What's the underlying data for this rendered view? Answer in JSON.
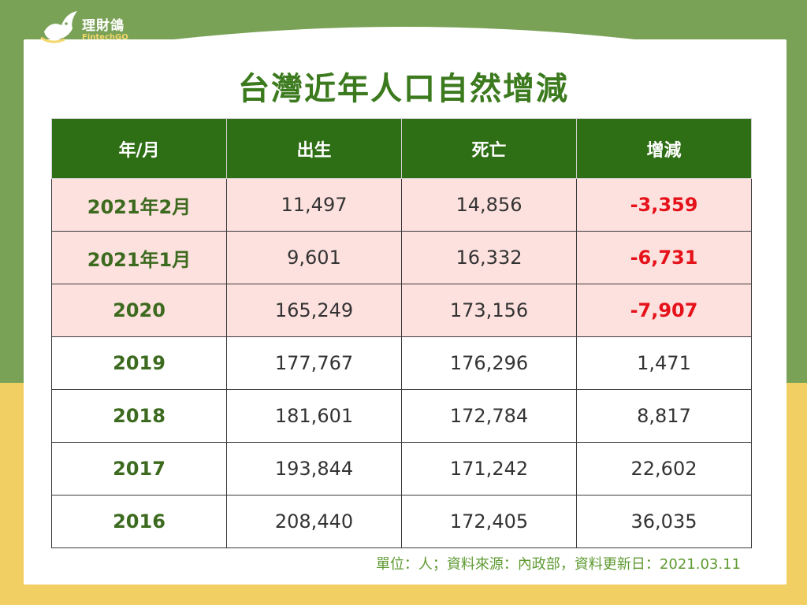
{
  "logo": {
    "name": "理財鴿",
    "subtitle": "FintechGO"
  },
  "title": "台灣近年人口自然增減",
  "table": {
    "headers": [
      "年/月",
      "出生",
      "死亡",
      "增減"
    ],
    "rows": [
      {
        "period": "2021年2月",
        "births": "11,497",
        "deaths": "14,856",
        "change": "-3,359",
        "highlight": true,
        "negative": true
      },
      {
        "period": "2021年1月",
        "births": "9,601",
        "deaths": "16,332",
        "change": "-6,731",
        "highlight": true,
        "negative": true
      },
      {
        "period": "2020",
        "births": "165,249",
        "deaths": "173,156",
        "change": "-7,907",
        "highlight": true,
        "negative": true
      },
      {
        "period": "2019",
        "births": "177,767",
        "deaths": "176,296",
        "change": "1,471",
        "highlight": false,
        "negative": false
      },
      {
        "period": "2018",
        "births": "181,601",
        "deaths": "172,784",
        "change": "8,817",
        "highlight": false,
        "negative": false
      },
      {
        "period": "2017",
        "births": "193,844",
        "deaths": "171,242",
        "change": "22,602",
        "highlight": false,
        "negative": false
      },
      {
        "period": "2016",
        "births": "208,440",
        "deaths": "172,405",
        "change": "36,035",
        "highlight": false,
        "negative": false
      }
    ]
  },
  "footnote": "單位：人；資料來源：內政部，資料更新日：2021.03.11",
  "colors": {
    "header_green": "#2e6e14",
    "highlight_pink": "#fde1df",
    "negative_red": "#e5121a",
    "background_green": "#7aa257",
    "background_yellow": "#f2cf63"
  }
}
